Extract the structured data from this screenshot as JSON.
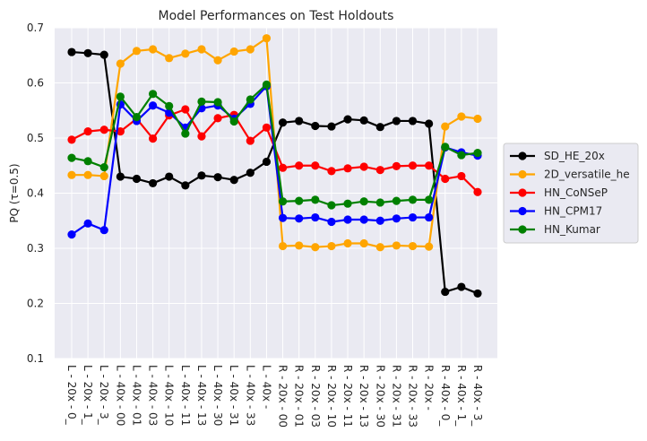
{
  "chart_data": {
    "type": "line",
    "title": "Model Performances on Test Holdouts",
    "xlabel": "",
    "ylabel": "PQ  (τ=0.5)",
    "ylim": [
      0.1,
      0.7
    ],
    "yticks": [
      0.1,
      0.2,
      0.3,
      0.4,
      0.5,
      0.6,
      0.7
    ],
    "grid": true,
    "legend_position": "right",
    "categories": [
      "L - 20x - 0_",
      "L - 20x - 1_",
      "L - 20x - 3_",
      "L - 40x - 00",
      "L - 40x - 01",
      "L - 40x - 03",
      "L - 40x - 10",
      "L - 40x - 11",
      "L - 40x - 13",
      "L - 40x - 30",
      "L - 40x - 31",
      "L - 40x - 33",
      "L - 40x - ",
      "R - 20x - 00",
      "R - 20x - 01",
      "R - 20x - 03",
      "R - 20x - 10",
      "R - 20x - 11",
      "R - 20x - 13",
      "R - 20x - 30",
      "R - 20x - 31",
      "R - 20x - 33",
      "R - 20x - ",
      "R - 40x - 0_",
      "R - 40x - 1_",
      "R - 40x - 3_"
    ],
    "series": [
      {
        "name": "SD_HE_20x",
        "color": "#000000",
        "values": [
          0.656,
          0.654,
          0.651,
          0.43,
          0.426,
          0.418,
          0.43,
          0.414,
          0.432,
          0.429,
          0.424,
          0.437,
          0.457,
          0.528,
          0.531,
          0.522,
          0.521,
          0.534,
          0.532,
          0.52,
          0.531,
          0.531,
          0.526,
          0.221,
          0.23,
          0.218
        ]
      },
      {
        "name": "2D_versatile_he",
        "color": "#ffa500",
        "values": [
          0.433,
          0.433,
          0.431,
          0.635,
          0.658,
          0.661,
          0.645,
          0.653,
          0.661,
          0.641,
          0.657,
          0.661,
          0.681,
          0.304,
          0.305,
          0.302,
          0.304,
          0.309,
          0.309,
          0.302,
          0.305,
          0.304,
          0.303,
          0.521,
          0.539,
          0.535
        ]
      },
      {
        "name": "HN_CoNSeP",
        "color": "#ff0000",
        "values": [
          0.497,
          0.512,
          0.515,
          0.512,
          0.535,
          0.499,
          0.541,
          0.552,
          0.503,
          0.536,
          0.542,
          0.495,
          0.519,
          0.446,
          0.45,
          0.45,
          0.44,
          0.445,
          0.448,
          0.442,
          0.449,
          0.45,
          0.45,
          0.426,
          0.431,
          0.402
        ]
      },
      {
        "name": "HN_CPM17",
        "color": "#0000ff",
        "values": [
          0.325,
          0.345,
          0.333,
          0.561,
          0.531,
          0.559,
          0.546,
          0.519,
          0.554,
          0.559,
          0.535,
          0.562,
          0.594,
          0.355,
          0.354,
          0.356,
          0.348,
          0.352,
          0.352,
          0.35,
          0.354,
          0.356,
          0.356,
          0.483,
          0.474,
          0.468
        ]
      },
      {
        "name": "HN_Kumar",
        "color": "#008000",
        "values": [
          0.464,
          0.458,
          0.447,
          0.575,
          0.538,
          0.58,
          0.558,
          0.508,
          0.566,
          0.565,
          0.53,
          0.57,
          0.597,
          0.385,
          0.386,
          0.388,
          0.378,
          0.381,
          0.385,
          0.383,
          0.386,
          0.388,
          0.388,
          0.484,
          0.469,
          0.473
        ]
      }
    ]
  }
}
